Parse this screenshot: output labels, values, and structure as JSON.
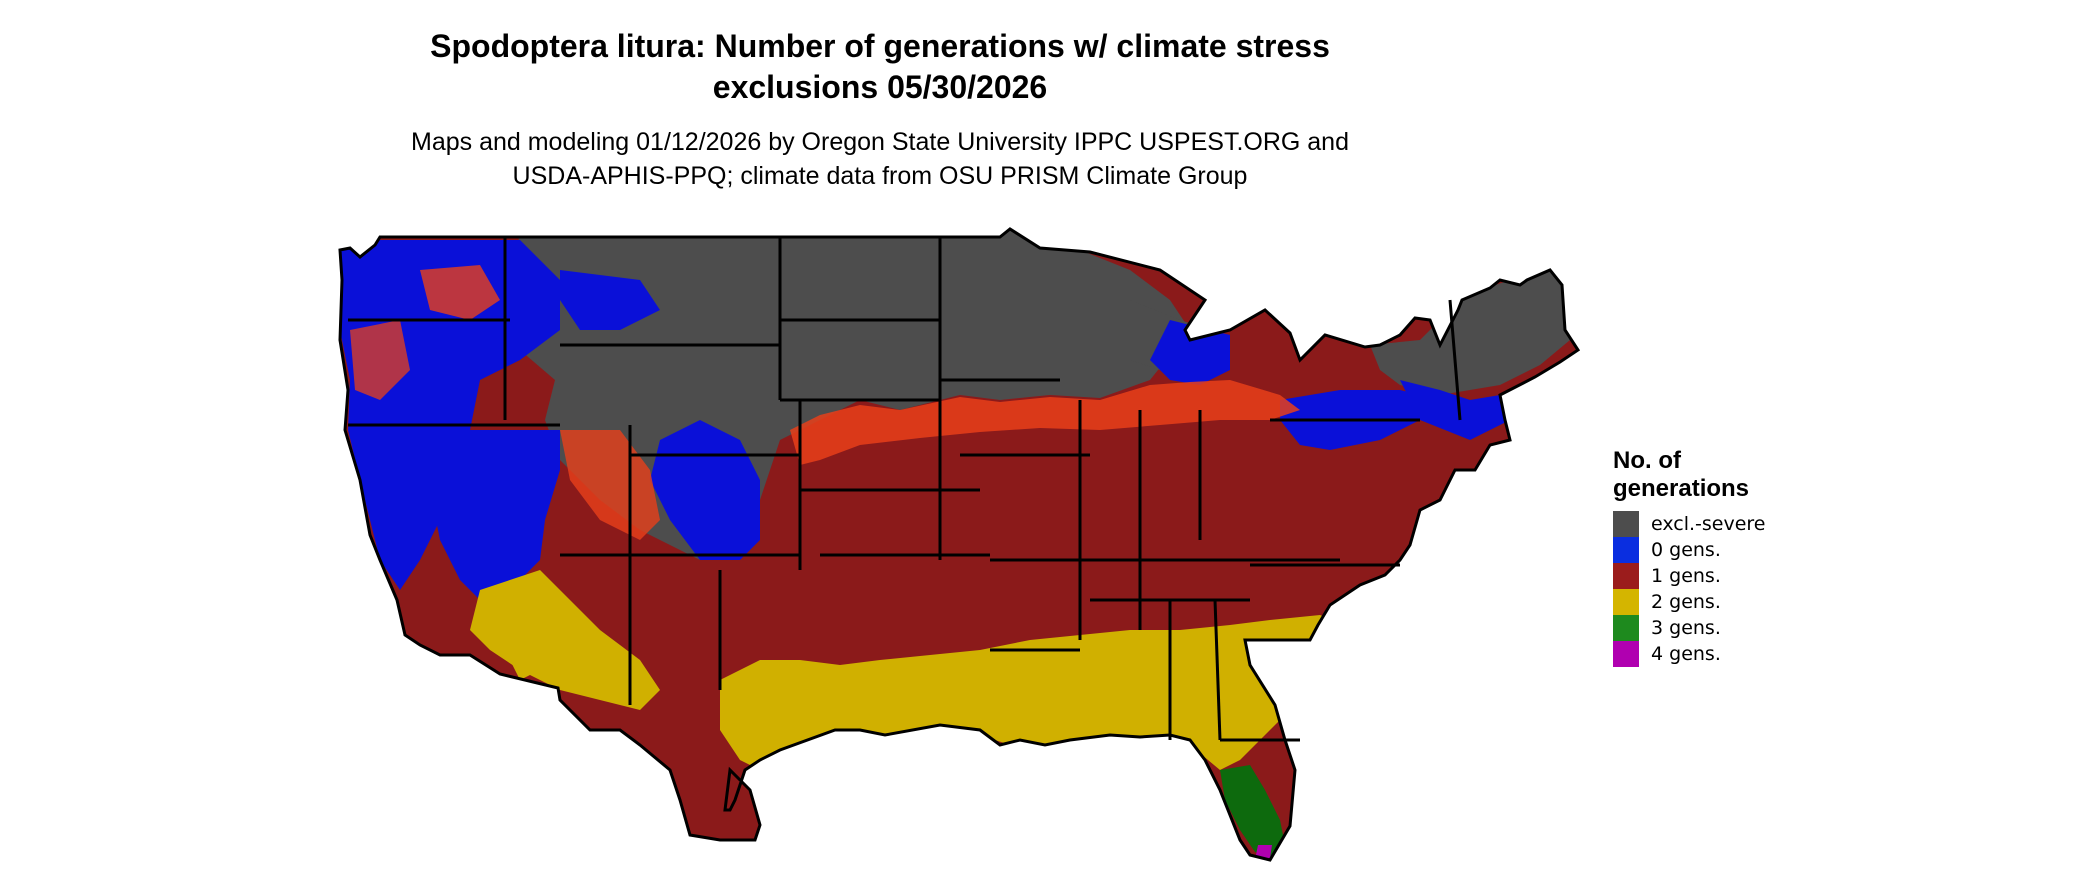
{
  "title": {
    "line1": "Spodoptera litura: Number of generations w/ climate stress",
    "line2": "exclusions 05/30/2026"
  },
  "subtitle": {
    "line1": "Maps and modeling 01/12/2026 by Oregon State University IPPC USPEST.ORG and",
    "line2": "USDA-APHIS-PPQ; climate data from OSU PRISM Climate Group"
  },
  "legend": {
    "title_line1": "No. of",
    "title_line2": "generations",
    "items": [
      {
        "label": "excl.-severe",
        "color": "#4d4d4d"
      },
      {
        "label": "0 gens.",
        "color": "#0a2ee0"
      },
      {
        "label": "1 gens.",
        "color": "#9b1c1c"
      },
      {
        "label": "2 gens.",
        "color": "#d4b500"
      },
      {
        "label": "3 gens.",
        "color": "#1e8a1e"
      },
      {
        "label": "4 gens.",
        "color": "#b000b0"
      }
    ]
  },
  "colors": {
    "excluded": "#4d4d4d",
    "gens0": "#0a10d8",
    "gens1": "#8b1a1a",
    "gens1_margin": "#e8401a",
    "gens2": "#d0b000",
    "gens3": "#0d6a0d",
    "gens4": "#b000b0",
    "borders": "#000000"
  }
}
